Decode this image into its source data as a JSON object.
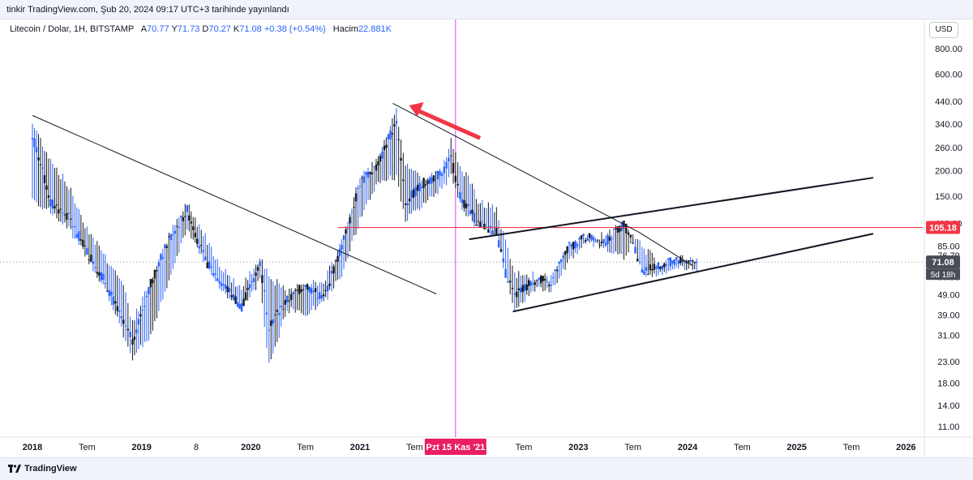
{
  "header": {
    "published_text": "tinkir TradingView.com, Şub 20, 2024 09:17 UTC+3 tarihinde yayınlandı"
  },
  "legend": {
    "symbol": "Litecoin / Dolar, 1H, BITSTAMP",
    "open_label": "A",
    "open": "70.77",
    "high_label": "Y",
    "high": "71.73",
    "low_label": "D",
    "low": "70.27",
    "close_label": "K",
    "close": "71.08",
    "change": "+0.38 (+0.54%)",
    "volume_label": "Hacim",
    "volume": "22.881K"
  },
  "currency_button": "USD",
  "brand": {
    "logo_icon": "tradingview-logo-icon",
    "name": "TradingView"
  },
  "colors": {
    "up": "#2962ff",
    "down": "#131722",
    "level_line": "#f23645",
    "cursor_line": "#e040fb",
    "arrow": "#f23645"
  },
  "chart_data": {
    "type": "candlestick",
    "scale": "log",
    "y_ticks": [
      "800.00",
      "600.00",
      "440.00",
      "340.00",
      "260.00",
      "200.00",
      "150.00",
      "110.00",
      "85.00",
      "76.79",
      "59.95",
      "49.00",
      "39.00",
      "31.00",
      "23.00",
      "18.00",
      "14.00",
      "11.00"
    ],
    "x_ticks": [
      "2018",
      "Tem",
      "2019",
      "8",
      "2020",
      "Tem",
      "2021",
      "Tem",
      "Pzt 15 Kas '21",
      "Tem",
      "2023",
      "Tem",
      "2024",
      "Tem",
      "2025",
      "Tem",
      "2026"
    ],
    "price_labels": {
      "level": "105.18",
      "current": "71.08",
      "countdown": "5d 18h"
    },
    "horizontal_level": 105.18,
    "series": [
      {
        "date": "2018-01",
        "low": 140,
        "high": 360,
        "open": 220,
        "close": 300
      },
      {
        "date": "2018-03",
        "low": 120,
        "high": 240,
        "open": 200,
        "close": 140
      },
      {
        "date": "2018-05",
        "low": 100,
        "high": 175,
        "open": 145,
        "close": 118
      },
      {
        "date": "2018-07",
        "low": 72,
        "high": 110,
        "open": 95,
        "close": 80
      },
      {
        "date": "2018-09",
        "low": 50,
        "high": 80,
        "open": 72,
        "close": 57
      },
      {
        "date": "2018-11",
        "low": 30,
        "high": 58,
        "open": 52,
        "close": 35
      },
      {
        "date": "2018-12",
        "low": 23,
        "high": 38,
        "open": 34,
        "close": 29
      },
      {
        "date": "2019-02",
        "low": 30,
        "high": 60,
        "open": 32,
        "close": 56
      },
      {
        "date": "2019-04",
        "low": 55,
        "high": 100,
        "open": 58,
        "close": 92
      },
      {
        "date": "2019-06",
        "low": 100,
        "high": 145,
        "open": 110,
        "close": 128
      },
      {
        "date": "2019-08",
        "low": 68,
        "high": 100,
        "open": 92,
        "close": 72
      },
      {
        "date": "2019-10",
        "low": 48,
        "high": 68,
        "open": 60,
        "close": 55
      },
      {
        "date": "2019-12",
        "low": 40,
        "high": 55,
        "open": 48,
        "close": 43
      },
      {
        "date": "2020-02",
        "low": 55,
        "high": 80,
        "open": 60,
        "close": 70
      },
      {
        "date": "2020-03",
        "low": 21,
        "high": 65,
        "open": 58,
        "close": 35
      },
      {
        "date": "2020-05",
        "low": 40,
        "high": 52,
        "open": 42,
        "close": 46
      },
      {
        "date": "2020-07",
        "low": 38,
        "high": 60,
        "open": 43,
        "close": 55
      },
      {
        "date": "2020-09",
        "low": 43,
        "high": 58,
        "open": 52,
        "close": 47
      },
      {
        "date": "2020-11",
        "low": 60,
        "high": 95,
        "open": 62,
        "close": 85
      },
      {
        "date": "2021-01",
        "low": 110,
        "high": 195,
        "open": 125,
        "close": 175
      },
      {
        "date": "2021-03",
        "low": 170,
        "high": 240,
        "open": 180,
        "close": 215
      },
      {
        "date": "2021-05",
        "low": 180,
        "high": 410,
        "open": 250,
        "close": 360
      },
      {
        "date": "2021-06",
        "low": 110,
        "high": 230,
        "open": 210,
        "close": 140
      },
      {
        "date": "2021-08",
        "low": 130,
        "high": 190,
        "open": 140,
        "close": 175
      },
      {
        "date": "2021-10",
        "low": 160,
        "high": 210,
        "open": 175,
        "close": 195
      },
      {
        "date": "2021-11",
        "low": 180,
        "high": 295,
        "open": 200,
        "close": 230
      },
      {
        "date": "2021-12",
        "low": 130,
        "high": 230,
        "open": 210,
        "close": 150
      },
      {
        "date": "2022-02",
        "low": 100,
        "high": 150,
        "open": 140,
        "close": 110
      },
      {
        "date": "2022-04",
        "low": 95,
        "high": 135,
        "open": 115,
        "close": 100
      },
      {
        "date": "2022-05",
        "low": 58,
        "high": 92,
        "open": 88,
        "close": 63
      },
      {
        "date": "2022-06",
        "low": 40,
        "high": 65,
        "open": 60,
        "close": 48
      },
      {
        "date": "2022-08",
        "low": 50,
        "high": 64,
        "open": 52,
        "close": 58
      },
      {
        "date": "2022-10",
        "low": 50,
        "high": 62,
        "open": 55,
        "close": 57
      },
      {
        "date": "2022-12",
        "low": 70,
        "high": 90,
        "open": 72,
        "close": 85
      },
      {
        "date": "2023-02",
        "low": 85,
        "high": 100,
        "open": 88,
        "close": 95
      },
      {
        "date": "2023-04",
        "low": 80,
        "high": 100,
        "open": 90,
        "close": 90
      },
      {
        "date": "2023-06",
        "low": 72,
        "high": 115,
        "open": 80,
        "close": 110
      },
      {
        "date": "2023-07",
        "low": 85,
        "high": 100,
        "open": 100,
        "close": 90
      },
      {
        "date": "2023-08",
        "low": 60,
        "high": 90,
        "open": 88,
        "close": 64
      },
      {
        "date": "2023-10",
        "low": 60,
        "high": 72,
        "open": 63,
        "close": 68
      },
      {
        "date": "2023-12",
        "low": 65,
        "high": 78,
        "open": 68,
        "close": 73
      },
      {
        "date": "2024-02",
        "low": 63,
        "high": 74,
        "open": 70.77,
        "close": 71.08
      }
    ]
  }
}
